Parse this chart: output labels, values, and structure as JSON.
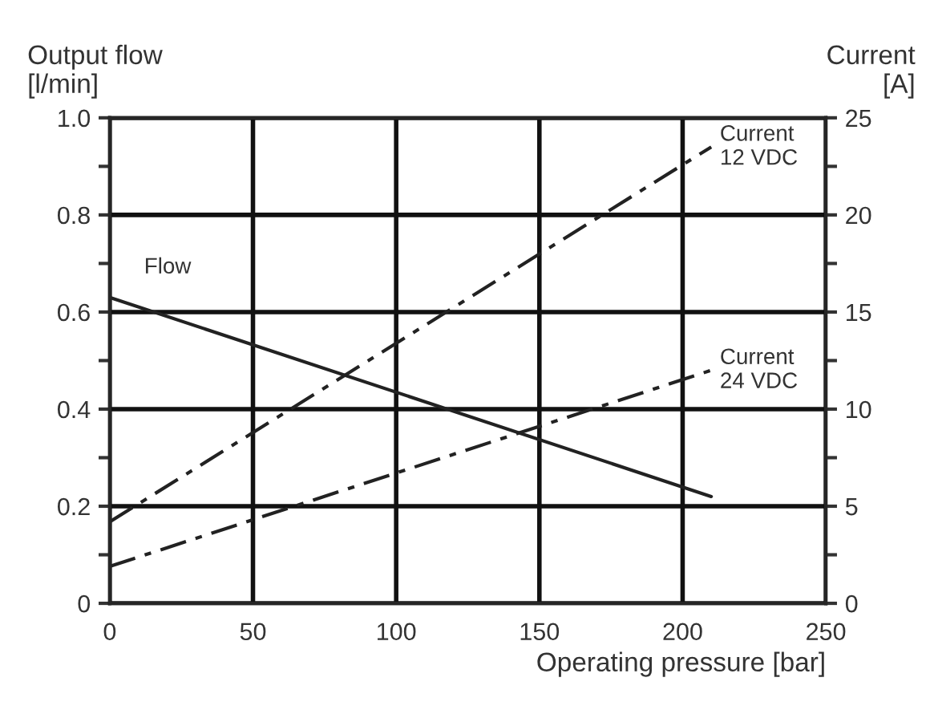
{
  "chart_data": {
    "type": "line",
    "xlabel": "Operating pressure [bar]",
    "ylabel": "Output flow\n[l/min]",
    "y2label": "Current\n[A]",
    "xlim": [
      0,
      250
    ],
    "xticks": [
      0,
      50,
      100,
      150,
      200,
      250
    ],
    "ylim": [
      0,
      1.0
    ],
    "yticks": [
      0,
      {
        "value": 0.1,
        "label": null
      },
      0.2,
      {
        "value": 0.3,
        "label": null
      },
      0.4,
      {
        "value": 0.5,
        "label": null
      },
      0.6,
      {
        "value": 0.7,
        "label": null
      },
      0.8,
      {
        "value": 0.9,
        "label": null
      },
      {
        "value": 1.0,
        "label": "1.0"
      }
    ],
    "y2lim": [
      0,
      25
    ],
    "y2ticks": [
      0,
      {
        "value": 2.5,
        "label": null
      },
      5,
      {
        "value": 7.5,
        "label": null
      },
      10,
      {
        "value": 12.5,
        "label": null
      },
      15,
      {
        "value": 17.5,
        "label": null
      },
      20,
      {
        "value": 22.5,
        "label": null
      },
      25
    ],
    "grid": true,
    "legend": false,
    "marker": "none",
    "x": [
      0,
      210
    ],
    "series": [
      {
        "name": "Flow",
        "color": "#222222",
        "line_style": "solid",
        "values": [
          0.63,
          0.22
        ]
      },
      {
        "name": "Current\n12 VDC",
        "color": "#222222",
        "line_style": "dashed",
        "axis": "y2",
        "values": [
          4.2,
          23.5
        ]
      },
      {
        "name": "Current\n24 VDC",
        "color": "#222222",
        "line_style": "dashed",
        "axis": "y2",
        "values": [
          1.9,
          12.0
        ]
      }
    ]
  }
}
